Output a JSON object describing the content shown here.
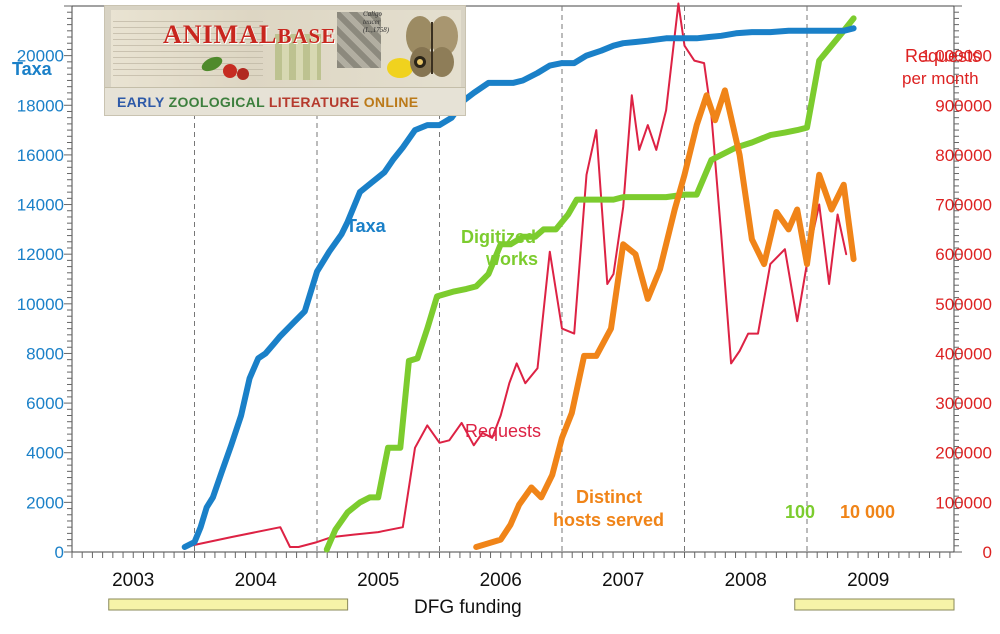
{
  "banner": {
    "logo_part1": "ANIMAL",
    "logo_part2": "BASE",
    "caption_line1": "Caligo",
    "caption_line2": "teucer",
    "caption_line3": "(L.,1758)",
    "subtitle_w1": "EARLY",
    "subtitle_w2": "ZOOLOGICAL",
    "subtitle_w3": "LITERATURE",
    "subtitle_w4": "ONLINE"
  },
  "colors": {
    "taxa": "#1a80c8",
    "works": "#7ccc2e",
    "requests": "#dd2244",
    "hosts": "#f08418",
    "funding": "#f6f3a8",
    "axis_left": "#1a80c8",
    "axis_right": "#dd2222"
  },
  "chart_data": {
    "type": "line",
    "title": "AnimalBase – Early Zoological Literature Online",
    "left_axis": {
      "label": "Taxa",
      "range": [
        0,
        22000
      ],
      "ticks": [
        0,
        2000,
        4000,
        6000,
        8000,
        10000,
        12000,
        14000,
        16000,
        18000,
        20000
      ],
      "tick_labels": [
        "0",
        "2000",
        "4000",
        "6000",
        "8000",
        "10000",
        "12000",
        "14000",
        "16000",
        "18000",
        "20000"
      ]
    },
    "right_axis": {
      "label_line1": "Requests",
      "label_line2": "per month",
      "range": [
        0,
        1100000
      ],
      "ticks": [
        0,
        100000,
        200000,
        300000,
        400000,
        500000,
        600000,
        700000,
        800000,
        900000,
        1000000
      ],
      "tick_labels": [
        "0",
        "100000",
        "200000",
        "300000",
        "400000",
        "500000",
        "600000",
        "700000",
        "800000",
        "900000",
        "1 000000"
      ]
    },
    "x_axis": {
      "range": [
        2002.5,
        2009.7
      ],
      "year_labels": [
        "2003",
        "2004",
        "2005",
        "2006",
        "2007",
        "2008",
        "2009"
      ],
      "year_boundaries": [
        2003.5,
        2004.5,
        2005.5,
        2006.5,
        2007.5,
        2008.5
      ]
    },
    "series": [
      {
        "name": "Taxa",
        "axis": "left",
        "x": [
          2003.42,
          2003.5,
          2003.55,
          2003.6,
          2003.65,
          2003.72,
          2003.8,
          2003.88,
          2003.95,
          2004.02,
          2004.08,
          2004.15,
          2004.2,
          2004.3,
          2004.4,
          2004.5,
          2004.6,
          2004.7,
          2004.75,
          2004.85,
          2004.95,
          2005.05,
          2005.12,
          2005.2,
          2005.3,
          2005.4,
          2005.5,
          2005.6,
          2005.7,
          2005.78,
          2005.9,
          2006.0,
          2006.1,
          2006.18,
          2006.3,
          2006.4,
          2006.5,
          2006.6,
          2006.7,
          2006.82,
          2006.92,
          2007.0,
          2007.1,
          2007.2,
          2007.35,
          2007.5,
          2007.6,
          2007.7,
          2007.8,
          2007.92,
          2008.05,
          2008.2,
          2008.35,
          2008.5,
          2008.6,
          2008.7,
          2008.8,
          2008.88
        ],
        "values": [
          200,
          400,
          1000,
          1800,
          2200,
          3200,
          4300,
          5500,
          7000,
          7800,
          8000,
          8400,
          8700,
          9200,
          9700,
          11300,
          12100,
          12800,
          13300,
          14500,
          14900,
          15300,
          15800,
          16300,
          17000,
          17200,
          17200,
          17500,
          18200,
          18500,
          18900,
          18900,
          18900,
          19000,
          19300,
          19600,
          19700,
          19700,
          20000,
          20200,
          20400,
          20500,
          20550,
          20600,
          20700,
          20700,
          20700,
          20750,
          20800,
          20900,
          20950,
          20950,
          21000,
          21000,
          21000,
          21000,
          21000,
          21100
        ]
      },
      {
        "name": "Digitized works",
        "axis": "left",
        "x": [
          2004.58,
          2004.65,
          2004.75,
          2004.85,
          2004.93,
          2005.0,
          2005.08,
          2005.18,
          2005.25,
          2005.32,
          2005.4,
          2005.48,
          2005.55,
          2005.62,
          2005.72,
          2005.8,
          2005.9,
          2006.0,
          2006.08,
          2006.18,
          2006.28,
          2006.35,
          2006.45,
          2006.55,
          2006.62,
          2006.72,
          2006.82,
          2006.92,
          2007.0,
          2007.12,
          2007.2,
          2007.35,
          2007.5,
          2007.6,
          2007.72,
          2007.8,
          2007.92,
          2008.05,
          2008.2,
          2008.32,
          2008.42,
          2008.5,
          2008.6,
          2008.7,
          2008.8,
          2008.88
        ],
        "values": [
          100,
          900,
          1600,
          2000,
          2200,
          2200,
          4200,
          4200,
          7700,
          7800,
          9000,
          10300,
          10400,
          10500,
          10600,
          10700,
          11200,
          12400,
          12400,
          12700,
          12700,
          13000,
          13000,
          13600,
          14200,
          14200,
          14200,
          14200,
          14300,
          14300,
          14300,
          14300,
          14400,
          14400,
          15800,
          16000,
          16300,
          16500,
          16800,
          16900,
          17000,
          17100,
          19800,
          20400,
          21000,
          21500
        ]
      },
      {
        "name": "Requests",
        "axis": "right",
        "x": [
          2003.42,
          2003.8,
          2004.2,
          2004.28,
          2004.35,
          2004.5,
          2004.62,
          2004.8,
          2005.0,
          2005.2,
          2005.3,
          2005.4,
          2005.5,
          2005.58,
          2005.68,
          2005.78,
          2005.85,
          2005.93,
          2006.0,
          2006.07,
          2006.13,
          2006.2,
          2006.3,
          2006.4,
          2006.5,
          2006.6,
          2006.7,
          2006.78,
          2006.87,
          2006.92,
          2007.0,
          2007.07,
          2007.13,
          2007.2,
          2007.27,
          2007.35,
          2007.45,
          2007.5,
          2007.58,
          2007.66,
          2007.72,
          2007.8,
          2007.88,
          2007.95,
          2008.02,
          2008.1,
          2008.2,
          2008.32,
          2008.42,
          2008.52,
          2008.6,
          2008.68,
          2008.75,
          2008.82
        ],
        "values": [
          10000,
          30000,
          50000,
          10000,
          10000,
          20000,
          30000,
          35000,
          40000,
          50000,
          210000,
          255000,
          220000,
          225000,
          260000,
          215000,
          240000,
          230000,
          275000,
          340000,
          380000,
          340000,
          370000,
          605000,
          450000,
          440000,
          760000,
          850000,
          540000,
          560000,
          695000,
          920000,
          810000,
          860000,
          810000,
          890000,
          1105000,
          1020000,
          990000,
          985000,
          880000,
          640000,
          380000,
          405000,
          440000,
          440000,
          580000,
          610000,
          465000,
          610000,
          700000,
          540000,
          680000,
          600000
        ]
      },
      {
        "name": "Distinct hosts served",
        "axis": "right",
        "x": [
          2005.8,
          2006.0,
          2006.08,
          2006.15,
          2006.25,
          2006.33,
          2006.42,
          2006.5,
          2006.58,
          2006.68,
          2006.78,
          2006.9,
          2007.0,
          2007.1,
          2007.2,
          2007.3,
          2007.42,
          2007.5,
          2007.6,
          2007.68,
          2007.75,
          2007.83,
          2007.95,
          2008.05,
          2008.15,
          2008.25,
          2008.35,
          2008.42,
          2008.5,
          2008.6,
          2008.7,
          2008.8,
          2008.88
        ],
        "values": [
          10000,
          25000,
          55000,
          95000,
          130000,
          110000,
          155000,
          230000,
          280000,
          395000,
          395000,
          450000,
          620000,
          600000,
          510000,
          570000,
          690000,
          760000,
          860000,
          920000,
          870000,
          930000,
          800000,
          630000,
          580000,
          685000,
          650000,
          690000,
          580000,
          760000,
          690000,
          740000,
          590000
        ]
      }
    ],
    "funding": {
      "label": "DFG funding",
      "periods": [
        [
          2002.8,
          2004.75
        ],
        [
          2008.4,
          2009.7
        ]
      ]
    },
    "annotations": {
      "taxa_label": "Taxa",
      "works_line1": "Digitized",
      "works_line2": "works",
      "requests_label": "Requests",
      "hosts_line1": "Distinct",
      "hosts_line2": "hosts served",
      "scale_works": "100",
      "scale_hosts": "10 000"
    }
  }
}
